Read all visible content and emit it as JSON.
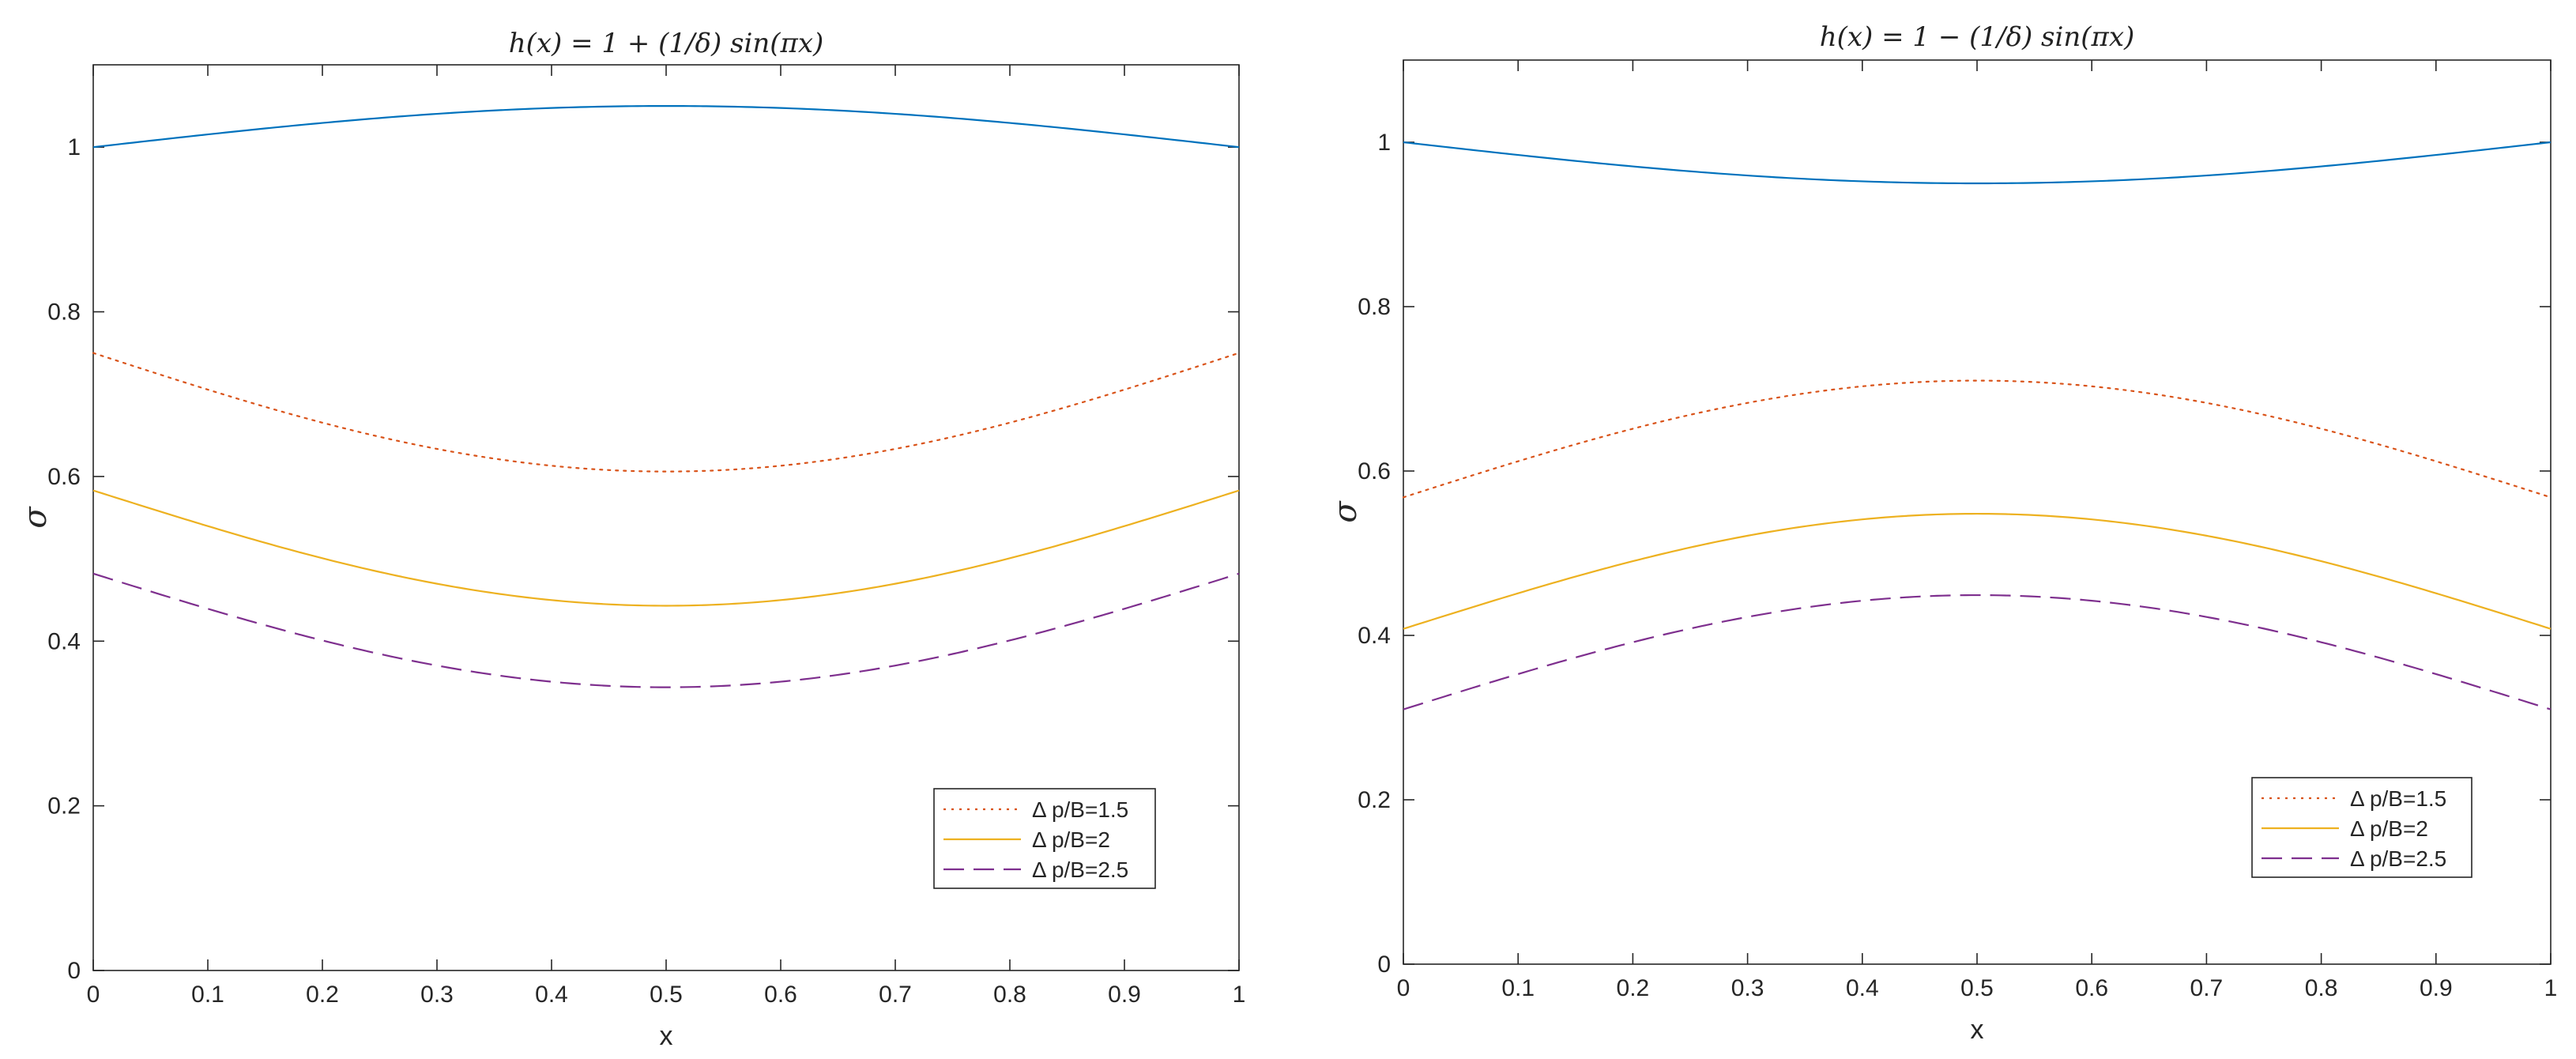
{
  "chart_data": [
    {
      "type": "line",
      "title": "h(x) = 1 + (1/δ) sin(πx)",
      "xlabel": "x",
      "ylabel": "σ",
      "xlim": [
        0,
        1
      ],
      "ylim": [
        0,
        1.1
      ],
      "xticks": [
        "0",
        "0.1",
        "0.2",
        "0.3",
        "0.4",
        "0.5",
        "0.6",
        "0.7",
        "0.8",
        "0.9",
        "1"
      ],
      "yticks": [
        "0",
        "0.2",
        "0.4",
        "0.6",
        "0.8",
        "1"
      ],
      "legend_position": "bottom-right",
      "series": [
        {
          "name": "",
          "style": "solid",
          "color": "#0072BD",
          "x": [
            0,
            0.1,
            0.2,
            0.3,
            0.4,
            0.5,
            0.6,
            0.7,
            0.8,
            0.9,
            1
          ],
          "values": [
            1.0,
            1.015,
            1.029,
            1.04,
            1.047,
            1.05,
            1.047,
            1.04,
            1.029,
            1.015,
            1.0
          ]
        },
        {
          "name": "Δ p/B=1.5",
          "style": "dotted",
          "color": "#D95319",
          "x": [
            0,
            0.1,
            0.2,
            0.3,
            0.4,
            0.5,
            0.6,
            0.7,
            0.8,
            0.9,
            1
          ],
          "values": [
            0.75,
            0.705,
            0.665,
            0.635,
            0.613,
            0.606,
            0.613,
            0.635,
            0.665,
            0.705,
            0.75
          ]
        },
        {
          "name": "Δ p/B=2",
          "style": "solid",
          "color": "#EDB120",
          "x": [
            0,
            0.1,
            0.2,
            0.3,
            0.4,
            0.5,
            0.6,
            0.7,
            0.8,
            0.9,
            1
          ],
          "values": [
            0.583,
            0.538,
            0.5,
            0.47,
            0.45,
            0.443,
            0.45,
            0.47,
            0.5,
            0.538,
            0.583
          ]
        },
        {
          "name": "Δ p/B=2.5",
          "style": "dashed",
          "color": "#7E2F8E",
          "x": [
            0,
            0.1,
            0.2,
            0.3,
            0.4,
            0.5,
            0.6,
            0.7,
            0.8,
            0.9,
            1
          ],
          "values": [
            0.482,
            0.438,
            0.4,
            0.37,
            0.351,
            0.344,
            0.351,
            0.37,
            0.4,
            0.438,
            0.482
          ]
        }
      ]
    },
    {
      "type": "line",
      "title": "h(x) = 1 − (1/δ) sin(πx)",
      "xlabel": "x",
      "ylabel": "σ",
      "xlim": [
        0,
        1
      ],
      "ylim": [
        0,
        1.1
      ],
      "xticks": [
        "0",
        "0.1",
        "0.2",
        "0.3",
        "0.4",
        "0.5",
        "0.6",
        "0.7",
        "0.8",
        "0.9",
        "1"
      ],
      "yticks": [
        "0",
        "0.2",
        "0.4",
        "0.6",
        "0.8",
        "1"
      ],
      "legend_position": "bottom-right",
      "series": [
        {
          "name": "",
          "style": "solid",
          "color": "#0072BD",
          "x": [
            0,
            0.1,
            0.2,
            0.3,
            0.4,
            0.5,
            0.6,
            0.7,
            0.8,
            0.9,
            1
          ],
          "values": [
            1.0,
            0.985,
            0.971,
            0.96,
            0.953,
            0.95,
            0.953,
            0.96,
            0.971,
            0.985,
            1.0
          ]
        },
        {
          "name": "Δ p/B=1.5",
          "style": "dotted",
          "color": "#D95319",
          "x": [
            0,
            0.1,
            0.2,
            0.3,
            0.4,
            0.5,
            0.6,
            0.7,
            0.8,
            0.9,
            1
          ],
          "values": [
            0.568,
            0.612,
            0.65,
            0.68,
            0.703,
            0.71,
            0.703,
            0.68,
            0.65,
            0.612,
            0.568
          ]
        },
        {
          "name": "Δ p/B=2",
          "style": "solid",
          "color": "#EDB120",
          "x": [
            0,
            0.1,
            0.2,
            0.3,
            0.4,
            0.5,
            0.6,
            0.7,
            0.8,
            0.9,
            1
          ],
          "values": [
            0.408,
            0.452,
            0.49,
            0.52,
            0.541,
            0.548,
            0.541,
            0.52,
            0.49,
            0.452,
            0.408
          ]
        },
        {
          "name": "Δ p/B=2.5",
          "style": "dashed",
          "color": "#7E2F8E",
          "x": [
            0,
            0.1,
            0.2,
            0.3,
            0.4,
            0.5,
            0.6,
            0.7,
            0.8,
            0.9,
            1
          ],
          "values": [
            0.31,
            0.355,
            0.392,
            0.422,
            0.442,
            0.449,
            0.442,
            0.422,
            0.392,
            0.355,
            0.31
          ]
        }
      ]
    }
  ]
}
